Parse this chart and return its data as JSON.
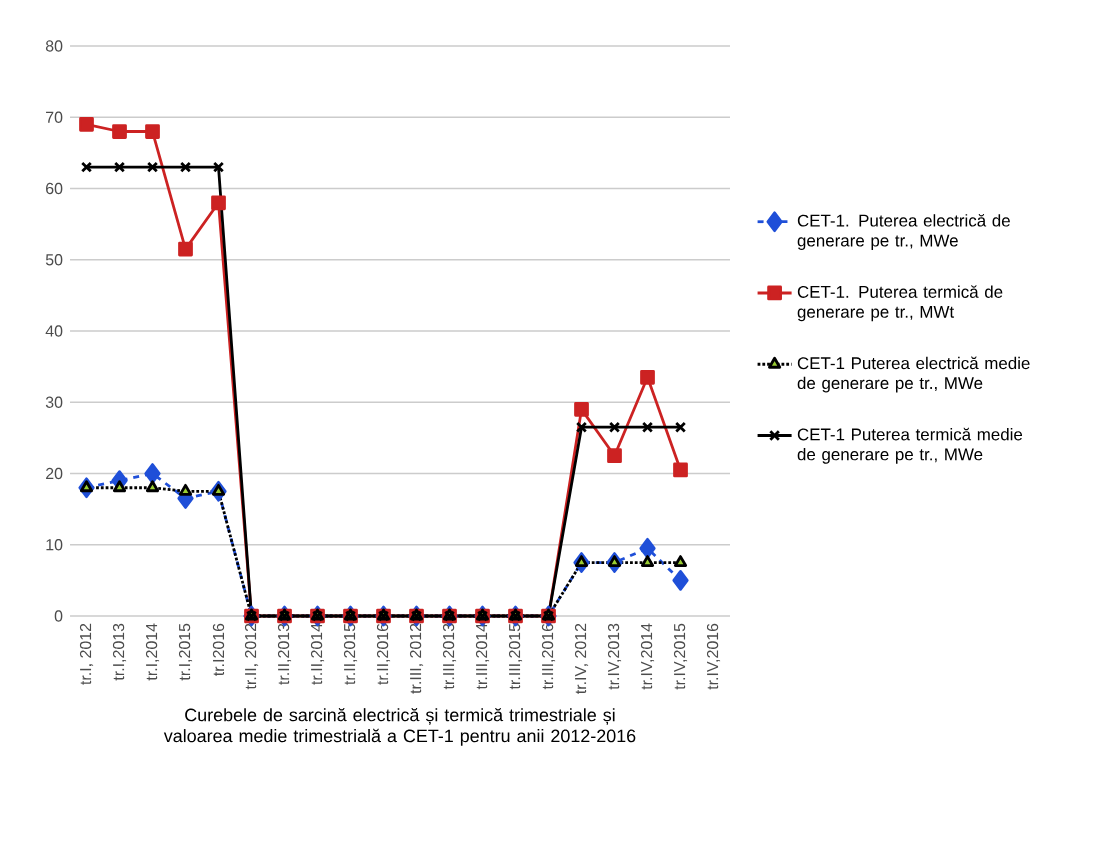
{
  "chart_data": {
    "type": "line",
    "xlabel": "Curebele de sarcină electrică și termică trimestriale și valoarea medie  trimestrială a CET-1  pentru anii 2012-2016",
    "categories": [
      "tr.I, 2012",
      "tr.I,2013",
      "tr.I,2014",
      "tr.I,2015",
      "tr.I2016",
      "tr.II, 2012",
      "tr.II,2013",
      "tr.II,2014",
      "tr.II,2015",
      "tr.II,2016",
      "tr.III, 2012",
      "tr.III,2013",
      "tr.III,2014",
      "tr.III,2015",
      "tr.III,2016",
      "tr.IV, 2012",
      "tr.IV,2013",
      "tr.IV,2014",
      "tr.IV,2015",
      "tr.IV,2016"
    ],
    "series": [
      {
        "name": "CET-1. Puterea electrică de generare pe tr., MWe",
        "color": "#1f4fd8",
        "marker": "diamond",
        "line_style": "dashed",
        "values": [
          18,
          19,
          20,
          16.5,
          17.5,
          0,
          0,
          0,
          0,
          0,
          0,
          0,
          0,
          0,
          0,
          7.5,
          7.5,
          9.5,
          5,
          null
        ]
      },
      {
        "name": "CET-1. Puterea termică de generare pe tr., MWt",
        "color": "#cc2222",
        "marker": "square",
        "line_style": "solid",
        "values": [
          69,
          68,
          68,
          51.5,
          58,
          0,
          0,
          0,
          0,
          0,
          0,
          0,
          0,
          0,
          0,
          29,
          22.5,
          33.5,
          20.5,
          null
        ]
      },
      {
        "name": "CET-1 Puterea electrică medie de generare pe tr., MWe",
        "color": "#000000",
        "marker": "triangle",
        "line_style": "dotted",
        "values": [
          18,
          18,
          18,
          17.5,
          17.5,
          0,
          0,
          0,
          0,
          0,
          0,
          0,
          0,
          0,
          0,
          7.5,
          7.5,
          7.5,
          7.5,
          null
        ]
      },
      {
        "name": "CET-1 Puterea termică medie de generare pe tr., MWe",
        "color": "#000000",
        "marker": "cross",
        "line_style": "solid",
        "values": [
          63,
          63,
          63,
          63,
          63,
          0,
          0,
          0,
          0,
          0,
          0,
          0,
          0,
          0,
          0,
          26.5,
          26.5,
          26.5,
          26.5,
          null
        ]
      }
    ],
    "ylim": [
      0,
      80
    ],
    "yticks": [
      0,
      10,
      20,
      30,
      40,
      50,
      60,
      70,
      80
    ],
    "grid": "y",
    "legend": "right"
  }
}
